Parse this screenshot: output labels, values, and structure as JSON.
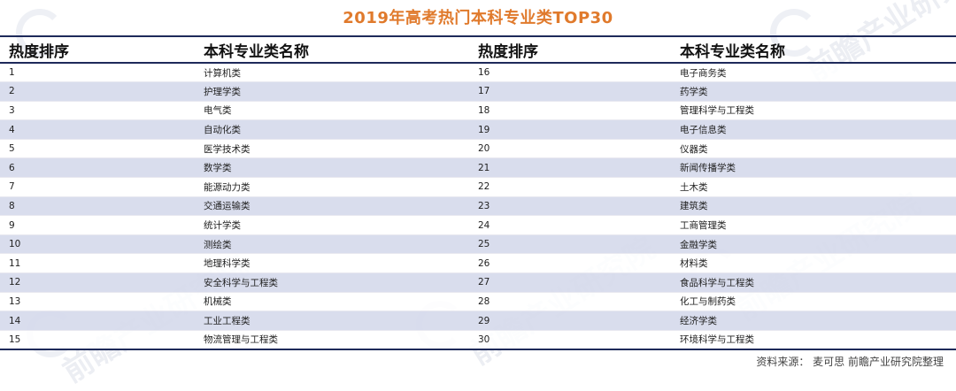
{
  "title": "2019年高考热门本科专业类TOP30",
  "headers": {
    "rank_left": "热度排序",
    "name_left": "本科专业类名称",
    "rank_right": "热度排序",
    "name_right": "本科专业类名称"
  },
  "rows": [
    {
      "rank_l": "1",
      "name_l": "计算机类",
      "rank_r": "16",
      "name_r": "电子商务类"
    },
    {
      "rank_l": "2",
      "name_l": "护理学类",
      "rank_r": "17",
      "name_r": "药学类"
    },
    {
      "rank_l": "3",
      "name_l": "电气类",
      "rank_r": "18",
      "name_r": "管理科学与工程类"
    },
    {
      "rank_l": "4",
      "name_l": "自动化类",
      "rank_r": "19",
      "name_r": "电子信息类"
    },
    {
      "rank_l": "5",
      "name_l": "医学技术类",
      "rank_r": "20",
      "name_r": "仪器类"
    },
    {
      "rank_l": "6",
      "name_l": "数学类",
      "rank_r": "21",
      "name_r": "新闻传播学类"
    },
    {
      "rank_l": "7",
      "name_l": "能源动力类",
      "rank_r": "22",
      "name_r": "土木类"
    },
    {
      "rank_l": "8",
      "name_l": "交通运输类",
      "rank_r": "23",
      "name_r": "建筑类"
    },
    {
      "rank_l": "9",
      "name_l": "统计学类",
      "rank_r": "24",
      "name_r": "工商管理类"
    },
    {
      "rank_l": "10",
      "name_l": "测绘类",
      "rank_r": "25",
      "name_r": "金融学类"
    },
    {
      "rank_l": "11",
      "name_l": "地理科学类",
      "rank_r": "26",
      "name_r": "材料类"
    },
    {
      "rank_l": "12",
      "name_l": "安全科学与工程类",
      "rank_r": "27",
      "name_r": "食品科学与工程类"
    },
    {
      "rank_l": "13",
      "name_l": "机械类",
      "rank_r": "28",
      "name_r": "化工与制药类"
    },
    {
      "rank_l": "14",
      "name_l": "工业工程类",
      "rank_r": "29",
      "name_r": "经济学类"
    },
    {
      "rank_l": "15",
      "name_l": "物流管理与工程类",
      "rank_r": "30",
      "name_r": "环境科学与工程类"
    }
  ],
  "source": "资料来源： 麦可思 前瞻产业研究院整理",
  "watermark_text": "前瞻产业研究院",
  "colors": {
    "title": "#e07a2c",
    "rule": "#1e2a5a",
    "band": "#d6daec"
  }
}
